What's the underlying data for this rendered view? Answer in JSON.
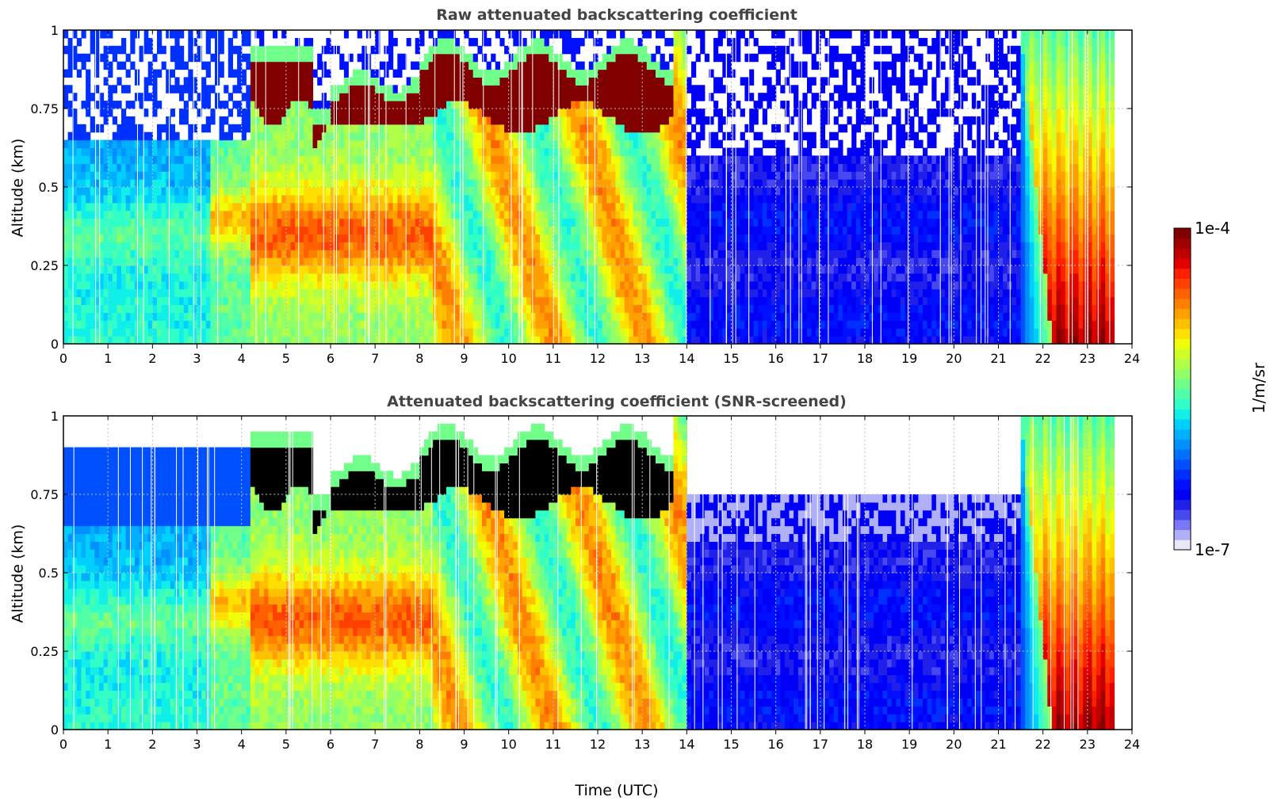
{
  "chart_data": [
    {
      "type": "heatmap",
      "title": "Raw attenuated backscattering coefficient",
      "xlabel": "",
      "ylabel": "Altitude (km)",
      "xlim": [
        0,
        24
      ],
      "ylim": [
        0,
        1
      ],
      "x_ticks": [
        "0",
        "1",
        "2",
        "3",
        "4",
        "5",
        "6",
        "7",
        "8",
        "9",
        "10",
        "11",
        "12",
        "13",
        "14",
        "15",
        "16",
        "17",
        "18",
        "19",
        "20",
        "21",
        "22",
        "23",
        "24"
      ],
      "y_ticks": [
        "0",
        "0.25",
        "0.5",
        "0.75",
        "1"
      ],
      "grid": true,
      "cloud_layer": {
        "start_utc": 4.2,
        "end_utc": 13.7,
        "base_km": 0.72,
        "top_km": 0.9
      },
      "data_end_utc": 23.6,
      "variant": "raw"
    },
    {
      "type": "heatmap",
      "title": "Attenuated backscattering coefficient (SNR-screened)",
      "xlabel": "Time (UTC)",
      "ylabel": "Altitude (km)",
      "xlim": [
        0,
        24
      ],
      "ylim": [
        0,
        1
      ],
      "x_ticks": [
        "0",
        "1",
        "2",
        "3",
        "4",
        "5",
        "6",
        "7",
        "8",
        "9",
        "10",
        "11",
        "12",
        "13",
        "14",
        "15",
        "16",
        "17",
        "18",
        "19",
        "20",
        "21",
        "22",
        "23",
        "24"
      ],
      "y_ticks": [
        "0",
        "0.25",
        "0.5",
        "0.75",
        "1"
      ],
      "grid": true,
      "cloud_layer": {
        "start_utc": 4.2,
        "end_utc": 13.7,
        "base_km": 0.72,
        "top_km": 0.9
      },
      "data_end_utc": 23.6,
      "variant": "screened"
    }
  ],
  "colorbar": {
    "label": "1/m/sr",
    "min_label": "1e-7",
    "max_label": "1e-4",
    "colors": [
      "#e8e8f8",
      "#b0b0f8",
      "#7878f8",
      "#4848f0",
      "#2020e8",
      "#0000f8",
      "#0010ff",
      "#0030ff",
      "#0050ff",
      "#0070ff",
      "#0090ff",
      "#00b0ff",
      "#00d0ff",
      "#10f0e8",
      "#30ffc8",
      "#50ffa8",
      "#70ff88",
      "#90ff68",
      "#b0ff48",
      "#d0ff28",
      "#f0ff08",
      "#ffe000",
      "#ffc000",
      "#ffa000",
      "#ff8000",
      "#ff6000",
      "#ff4000",
      "#ff2000",
      "#e00000",
      "#c00000",
      "#a00000",
      "#800000"
    ]
  }
}
